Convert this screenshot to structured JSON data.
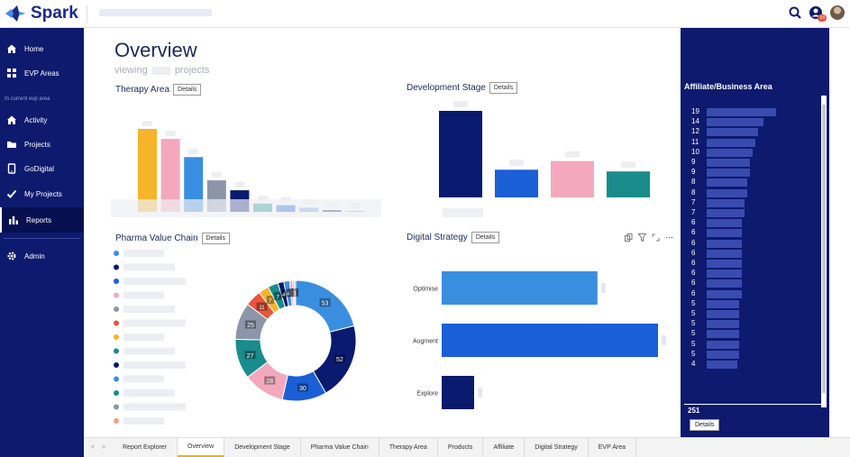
{
  "app": {
    "name": "Spark"
  },
  "nav": {
    "items": [
      {
        "label": "Home",
        "icon": "home-icon"
      },
      {
        "label": "EVP Areas",
        "icon": "grid-icon"
      }
    ],
    "caption": "In current evp area",
    "sub_items": [
      {
        "label": "Activity",
        "icon": "home-icon"
      },
      {
        "label": "Projects",
        "icon": "folder-icon"
      },
      {
        "label": "GoDigital",
        "icon": "tablet-icon"
      },
      {
        "label": "My Projects",
        "icon": "check-icon"
      },
      {
        "label": "Reports",
        "icon": "bar-chart-icon",
        "active": true
      }
    ],
    "admin": {
      "label": "Admin",
      "icon": "gear-icon"
    }
  },
  "header": {
    "notification_count": "14"
  },
  "overview": {
    "title": "Overview",
    "subtitle_prefix": "viewing",
    "subtitle_suffix": "projects"
  },
  "sections": {
    "therapy_area": {
      "title": "Therapy Area",
      "details_label": "Details"
    },
    "development_stage": {
      "title": "Development Stage",
      "details_label": "Details"
    },
    "pharma_value_chain": {
      "title": "Pharma Value Chain",
      "details_label": "Details"
    },
    "digital_strategy": {
      "title": "Digital Strategy",
      "details_label": "Details"
    }
  },
  "chart_data": [
    {
      "type": "bar",
      "name": "therapy-area",
      "values": [
        100,
        88,
        66,
        38,
        26,
        10,
        8,
        5,
        2,
        1
      ],
      "colors": [
        "#f6b42a",
        "#f4a8bd",
        "#3a8ee0",
        "#8c96a8",
        "#0a1a6e",
        "#1a8c8c",
        "#1a5fd6",
        "#7d9fe8",
        "#0a1a6e",
        "#8c96a8"
      ]
    },
    {
      "type": "bar",
      "name": "development-stage",
      "values": [
        100,
        32,
        42,
        30
      ],
      "colors": [
        "#0a1a6e",
        "#1a5fd6",
        "#f4a8bd",
        "#1a8c8c"
      ]
    },
    {
      "type": "pie",
      "name": "pharma-value-chain",
      "values": [
        53,
        52,
        30,
        28,
        27,
        25,
        11,
        7,
        7,
        4,
        4,
        2,
        1,
        1
      ],
      "labels": [
        "53",
        "52",
        "30",
        "28",
        "27",
        "25",
        "11",
        "7",
        "7",
        "4",
        "4",
        "2",
        "1",
        "1"
      ],
      "colors": [
        "#3a8ee0",
        "#0a1a6e",
        "#1a5fd6",
        "#f4a8bd",
        "#1a8c8c",
        "#8c96a8",
        "#e8553a",
        "#f6b42a",
        "#1a8c8c",
        "#0a1a6e",
        "#3a8ee0",
        "#f4a8bd",
        "#8c96a8",
        "#f0a080"
      ]
    },
    {
      "type": "bar",
      "name": "digital-strategy",
      "categories": [
        "Optimise",
        "Augment",
        "Explore"
      ],
      "values": [
        72,
        100,
        15
      ],
      "colors": [
        "#3a8ee0",
        "#1a5fd6",
        "#0a1a6e"
      ]
    },
    {
      "type": "bar",
      "name": "affiliate-business-area",
      "title": "Affiliate/Business Area",
      "values": [
        19,
        14,
        12,
        11,
        10,
        9,
        9,
        8,
        8,
        7,
        7,
        6,
        6,
        6,
        6,
        6,
        6,
        6,
        6,
        5,
        5,
        5,
        5,
        5,
        5,
        4
      ],
      "total": "251"
    }
  ],
  "pharma_legend_colors": [
    "#3a8ee0",
    "#0a1a6e",
    "#1a5fd6",
    "#f4a8bd",
    "#8c96a8",
    "#e8553a",
    "#f6b42a",
    "#1a8c8c",
    "#0a1a6e",
    "#3a8ee0",
    "#1a8c8c",
    "#8c96a8",
    "#f0a080"
  ],
  "right_panel": {
    "title": "Affiliate/Business Area",
    "total": "251",
    "details_label": "Details"
  },
  "tabs": [
    "Report Explorer",
    "Overview",
    "Development Stage",
    "Pharma Value Chain",
    "Therapy Area",
    "Products",
    "Affiliate",
    "Digital Strategy",
    "EVP Area"
  ],
  "active_tab": "Overview"
}
